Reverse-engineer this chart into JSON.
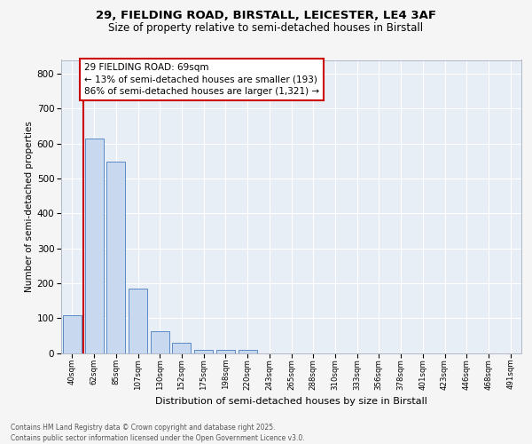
{
  "title1": "29, FIELDING ROAD, BIRSTALL, LEICESTER, LE4 3AF",
  "title2": "Size of property relative to semi-detached houses in Birstall",
  "xlabel": "Distribution of semi-detached houses by size in Birstall",
  "ylabel": "Number of semi-detached properties",
  "categories": [
    "40sqm",
    "62sqm",
    "85sqm",
    "107sqm",
    "130sqm",
    "152sqm",
    "175sqm",
    "198sqm",
    "220sqm",
    "243sqm",
    "265sqm",
    "288sqm",
    "310sqm",
    "333sqm",
    "356sqm",
    "378sqm",
    "401sqm",
    "423sqm",
    "446sqm",
    "468sqm",
    "491sqm"
  ],
  "values": [
    108,
    614,
    549,
    185,
    62,
    30,
    10,
    10,
    10,
    0,
    0,
    0,
    0,
    0,
    0,
    0,
    0,
    0,
    0,
    0,
    0
  ],
  "bar_color": "#c8d8ee",
  "bar_edge_color": "#5b8ac5",
  "vline_x": 0.5,
  "vline_color": "#cc0000",
  "ann_box_edgecolor": "#cc0000",
  "marker_label": "29 FIELDING ROAD: 69sqm",
  "pct_smaller": "13%",
  "pct_smaller_n": "193",
  "pct_larger": "86%",
  "pct_larger_n": "1,321",
  "ylim": [
    0,
    840
  ],
  "yticks": [
    0,
    100,
    200,
    300,
    400,
    500,
    600,
    700,
    800
  ],
  "footer1": "Contains HM Land Registry data © Crown copyright and database right 2025.",
  "footer2": "Contains public sector information licensed under the Open Government Licence v3.0.",
  "fig_bg_color": "#f5f5f5",
  "plot_bg_color": "#e8eef6"
}
